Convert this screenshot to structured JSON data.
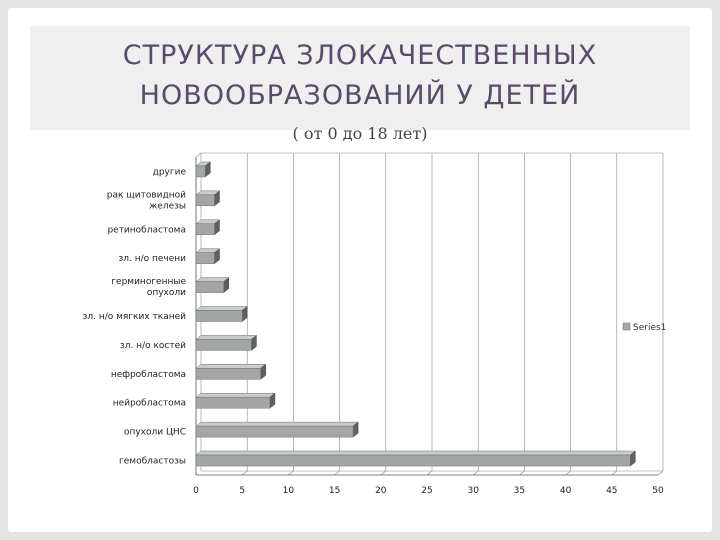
{
  "slide": {
    "title_line1": "Структура злокачественных",
    "title_line2": "новообразований   у детей",
    "subtitle": "( от 0 до 18 лет)"
  },
  "chart_data": {
    "type": "bar",
    "orientation": "horizontal",
    "categories": [
      "другие",
      "рак щитовидной железы",
      "ретинобластома",
      "зл. н/о печени",
      "герминогенные опухоли",
      "зл. н/о мягких тканей",
      "зл. н/о костей",
      "нефробластома",
      "нейробластома",
      "опухоли ЦНС",
      "гемобластозы"
    ],
    "series": [
      {
        "name": "Series1",
        "values": [
          1,
          2,
          2,
          2,
          3,
          5,
          6,
          7,
          8,
          17,
          47
        ]
      }
    ],
    "xlim": [
      0,
      50
    ],
    "xticks": [
      0,
      5,
      10,
      15,
      20,
      25,
      30,
      35,
      40,
      45,
      50
    ],
    "grid": true,
    "legend": "right",
    "colors": {
      "bar_front": "#a3a7a3",
      "bar_top": "#c9ccc9",
      "bar_side": "#5e625e",
      "grid": "#8a8a8a"
    }
  }
}
